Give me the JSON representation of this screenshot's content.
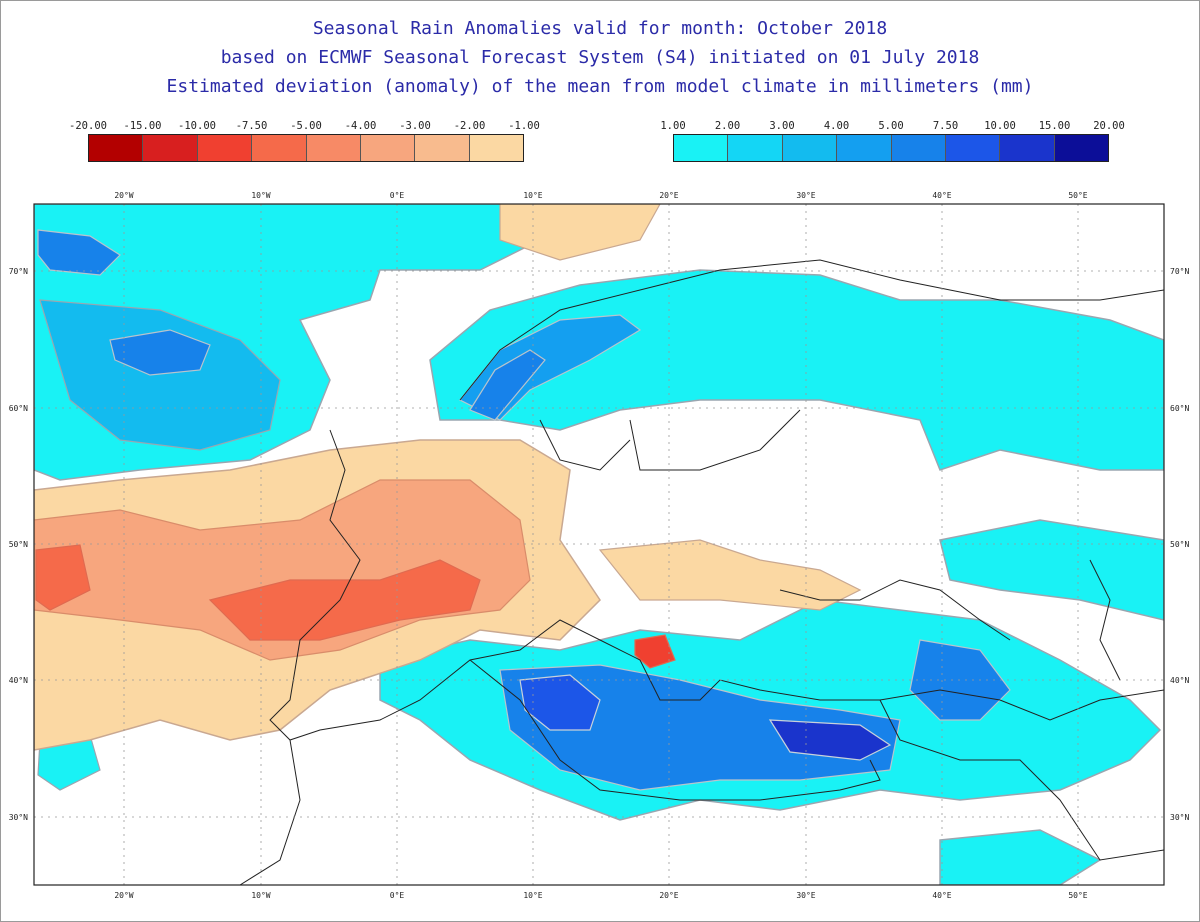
{
  "titles": {
    "line1": "Seasonal Rain Anomalies valid for month: October 2018",
    "line2": "based on ECMWF Seasonal Forecast System (S4) initiated on 01 July 2018",
    "line3": "Estimated deviation (anomaly) of the mean from model climate in millimeters (mm)"
  },
  "legend_negative": {
    "labels": [
      "-20.00",
      "-15.00",
      "-10.00",
      "-7.50",
      "-5.00",
      "-4.00",
      "-3.00",
      "-2.00",
      "-1.00"
    ],
    "colors": [
      "#b30000",
      "#d81f1f",
      "#f04030",
      "#f56a4a",
      "#f78a66",
      "#f7a67e",
      "#f8bb8e",
      "#fbd8a3"
    ]
  },
  "legend_positive": {
    "labels": [
      "1.00",
      "2.00",
      "3.00",
      "4.00",
      "5.00",
      "7.50",
      "10.00",
      "15.00",
      "20.00"
    ],
    "colors": [
      "#19f2f5",
      "#14d6f5",
      "#13bbef",
      "#149ff0",
      "#1782ea",
      "#1c56e8",
      "#1a34cc",
      "#0c0e98"
    ]
  },
  "map": {
    "lon_labels": [
      "20°W",
      "10°W",
      "0°E",
      "10°E",
      "20°E",
      "30°E",
      "40°E",
      "50°E"
    ],
    "lat_labels": [
      "70°N",
      "60°N",
      "50°N",
      "40°N",
      "30°N"
    ]
  }
}
